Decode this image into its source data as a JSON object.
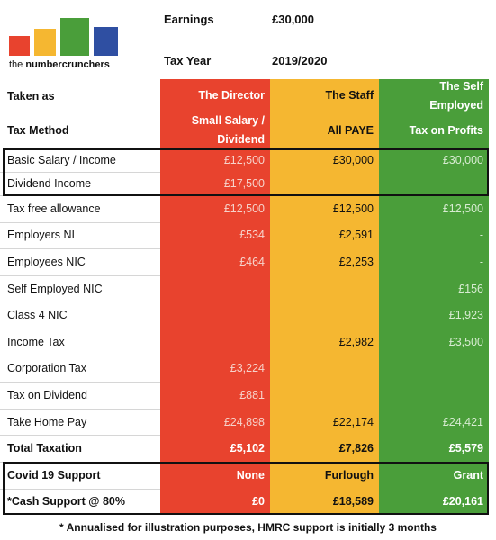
{
  "logo": {
    "words": [
      "the",
      "numbercrunchers"
    ]
  },
  "header": {
    "earnings_label": "Earnings",
    "earnings_value": "£30,000",
    "tax_year_label": "Tax Year",
    "tax_year_value": "2019/2020"
  },
  "table": {
    "taken_as": {
      "label": "Taken as",
      "columns": [
        [
          "The Director"
        ],
        [
          "The Staff"
        ],
        [
          "The Self",
          "Employed"
        ]
      ]
    },
    "tax_method": {
      "label": "Tax Method",
      "columns": [
        [
          "Small Salary /",
          "Dividend"
        ],
        [
          "All PAYE"
        ],
        [
          "Tax on Profits"
        ]
      ]
    },
    "rows": [
      [
        "Basic Salary / Income",
        "£12,500",
        "£30,000",
        "£30,000"
      ],
      [
        "Dividend Income",
        "£17,500",
        null,
        null
      ],
      [
        "Tax free allowance",
        "£12,500",
        "£12,500",
        "£12,500"
      ],
      [
        "Employers NI",
        "£534",
        "£2,591",
        "-"
      ],
      [
        "Employees NIC",
        "£464",
        "£2,253",
        "-"
      ],
      [
        "Self Employed NIC",
        null,
        null,
        "£156"
      ],
      [
        "Class 4 NIC",
        null,
        null,
        "£1,923"
      ],
      [
        "Income Tax",
        null,
        "£2,982",
        "£3,500"
      ],
      [
        "Corporation Tax",
        "£3,224",
        null,
        null
      ],
      [
        "Tax on Dividend",
        "£881",
        null,
        null
      ],
      [
        "Take Home Pay",
        "£24,898",
        "£22,174",
        "£24,421"
      ],
      [
        "Total Taxation",
        "£5,102",
        "£7,826",
        "£5,579"
      ],
      [
        "Covid 19 Support",
        "None",
        "Furlough",
        "Grant"
      ],
      [
        "*Cash Support @ 80%",
        "£0",
        "£18,589",
        "£20,161"
      ]
    ]
  },
  "footer": "* Annualised for illustration purposes, HMRC support is initially 3 months"
}
